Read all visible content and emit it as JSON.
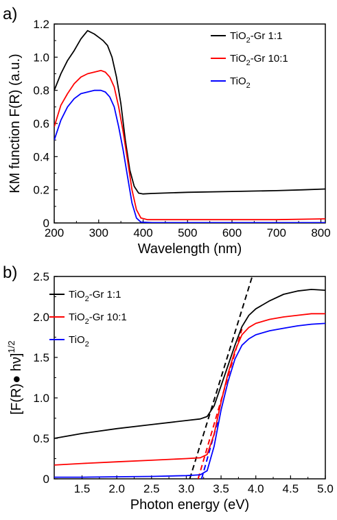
{
  "chart_data": [
    {
      "panel_label": "a)",
      "type": "line",
      "xlabel": "Wavelength (nm)",
      "ylabel": "KM function F(R) (a.u.)",
      "xlim": [
        200,
        810
      ],
      "ylim": [
        0,
        1.2
      ],
      "xticks": [
        "200",
        "300",
        "400",
        "500",
        "600",
        "700",
        "800"
      ],
      "yticks": [
        "0",
        "0.2",
        "0.4",
        "0.6",
        "0.8",
        "1.0",
        "1.2"
      ],
      "legend_position": "top-right",
      "series": [
        {
          "name": "TiO2-Gr 1:1",
          "name_main": "TiO",
          "name_sub": "2",
          "name_rest": "-Gr 1:1",
          "color": "#000000",
          "points": [
            [
              200,
              0.8
            ],
            [
              215,
              0.9
            ],
            [
              230,
              0.98
            ],
            [
              245,
              1.04
            ],
            [
              260,
              1.11
            ],
            [
              275,
              1.16
            ],
            [
              290,
              1.14
            ],
            [
              300,
              1.12
            ],
            [
              310,
              1.1
            ],
            [
              320,
              1.07
            ],
            [
              330,
              1.0
            ],
            [
              340,
              0.88
            ],
            [
              350,
              0.72
            ],
            [
              360,
              0.5
            ],
            [
              370,
              0.32
            ],
            [
              380,
              0.22
            ],
            [
              390,
              0.18
            ],
            [
              400,
              0.175
            ],
            [
              420,
              0.178
            ],
            [
              500,
              0.185
            ],
            [
              600,
              0.19
            ],
            [
              700,
              0.195
            ],
            [
              760,
              0.2
            ],
            [
              810,
              0.205
            ]
          ]
        },
        {
          "name": "TiO2-Gr 10:1",
          "name_main": "TiO",
          "name_sub": "2",
          "name_rest": "-Gr 10:1",
          "color": "#ff0000",
          "points": [
            [
              200,
              0.58
            ],
            [
              215,
              0.71
            ],
            [
              230,
              0.78
            ],
            [
              245,
              0.84
            ],
            [
              260,
              0.88
            ],
            [
              275,
              0.9
            ],
            [
              290,
              0.91
            ],
            [
              305,
              0.92
            ],
            [
              315,
              0.91
            ],
            [
              325,
              0.88
            ],
            [
              335,
              0.82
            ],
            [
              345,
              0.7
            ],
            [
              355,
              0.55
            ],
            [
              365,
              0.38
            ],
            [
              375,
              0.2
            ],
            [
              385,
              0.08
            ],
            [
              395,
              0.03
            ],
            [
              410,
              0.02
            ],
            [
              500,
              0.02
            ],
            [
              600,
              0.02
            ],
            [
              700,
              0.02
            ],
            [
              810,
              0.025
            ]
          ]
        },
        {
          "name": "TiO2",
          "name_main": "TiO",
          "name_sub": "2",
          "name_rest": "",
          "color": "#0000ff",
          "points": [
            [
              200,
              0.5
            ],
            [
              215,
              0.62
            ],
            [
              230,
              0.7
            ],
            [
              245,
              0.75
            ],
            [
              260,
              0.78
            ],
            [
              275,
              0.79
            ],
            [
              290,
              0.8
            ],
            [
              305,
              0.8
            ],
            [
              315,
              0.79
            ],
            [
              325,
              0.76
            ],
            [
              335,
              0.7
            ],
            [
              345,
              0.58
            ],
            [
              355,
              0.44
            ],
            [
              365,
              0.28
            ],
            [
              375,
              0.12
            ],
            [
              385,
              0.03
            ],
            [
              395,
              0.005
            ],
            [
              420,
              0.002
            ],
            [
              600,
              0.002
            ],
            [
              810,
              0.002
            ]
          ]
        }
      ]
    },
    {
      "panel_label": "b)",
      "type": "line",
      "xlabel": "Photon energy (eV)",
      "ylabel_main": "[F(R)● hν]",
      "ylabel_sup": "1/2",
      "xlim": [
        1.1,
        5.0
      ],
      "ylim": [
        0,
        2.5
      ],
      "xticks": [
        "1.5",
        "2.0",
        "2.5",
        "3.0",
        "3.5",
        "4.0",
        "4.5",
        "5.0"
      ],
      "yticks": [
        "0",
        "0.5",
        "1.0",
        "1.5",
        "2.0",
        "2.5"
      ],
      "legend_position": "top-left",
      "series": [
        {
          "name": "TiO2-Gr 1:1",
          "name_main": "TiO",
          "name_sub": "2",
          "name_rest": "-Gr 1:1",
          "color": "#000000",
          "points": [
            [
              1.1,
              0.5
            ],
            [
              1.5,
              0.56
            ],
            [
              2.0,
              0.62
            ],
            [
              2.5,
              0.67
            ],
            [
              3.0,
              0.72
            ],
            [
              3.2,
              0.74
            ],
            [
              3.3,
              0.77
            ],
            [
              3.4,
              0.9
            ],
            [
              3.5,
              1.15
            ],
            [
              3.6,
              1.4
            ],
            [
              3.7,
              1.65
            ],
            [
              3.8,
              1.88
            ],
            [
              3.9,
              2.02
            ],
            [
              4.0,
              2.1
            ],
            [
              4.2,
              2.2
            ],
            [
              4.4,
              2.28
            ],
            [
              4.6,
              2.32
            ],
            [
              4.8,
              2.34
            ],
            [
              5.0,
              2.33
            ]
          ]
        },
        {
          "name": "TiO2-Gr 10:1",
          "name_main": "TiO",
          "name_sub": "2",
          "name_rest": "-Gr 10:1",
          "color": "#ff0000",
          "points": [
            [
              1.1,
              0.17
            ],
            [
              1.5,
              0.19
            ],
            [
              2.0,
              0.21
            ],
            [
              2.5,
              0.23
            ],
            [
              3.0,
              0.25
            ],
            [
              3.2,
              0.26
            ],
            [
              3.3,
              0.3
            ],
            [
              3.4,
              0.55
            ],
            [
              3.5,
              0.95
            ],
            [
              3.6,
              1.3
            ],
            [
              3.7,
              1.58
            ],
            [
              3.8,
              1.78
            ],
            [
              3.9,
              1.87
            ],
            [
              4.0,
              1.92
            ],
            [
              4.2,
              1.97
            ],
            [
              4.4,
              2.0
            ],
            [
              4.6,
              2.02
            ],
            [
              4.8,
              2.04
            ],
            [
              5.0,
              2.04
            ]
          ]
        },
        {
          "name": "TiO2",
          "name_main": "TiO",
          "name_sub": "2",
          "name_rest": "",
          "color": "#0000ff",
          "points": [
            [
              1.1,
              0.02
            ],
            [
              1.5,
              0.02
            ],
            [
              2.0,
              0.025
            ],
            [
              2.5,
              0.03
            ],
            [
              3.0,
              0.04
            ],
            [
              3.2,
              0.05
            ],
            [
              3.3,
              0.1
            ],
            [
              3.4,
              0.4
            ],
            [
              3.5,
              0.85
            ],
            [
              3.6,
              1.2
            ],
            [
              3.7,
              1.48
            ],
            [
              3.8,
              1.65
            ],
            [
              3.9,
              1.73
            ],
            [
              4.0,
              1.78
            ],
            [
              4.2,
              1.83
            ],
            [
              4.4,
              1.86
            ],
            [
              4.6,
              1.89
            ],
            [
              4.8,
              1.91
            ],
            [
              5.0,
              1.92
            ]
          ]
        }
      ],
      "tangent_lines": [
        {
          "color": "#000000",
          "points": [
            [
              3.05,
              0.0
            ],
            [
              4.02,
              2.7
            ]
          ]
        },
        {
          "color": "#ff0000",
          "points": [
            [
              3.17,
              0.0
            ],
            [
              3.8,
              1.85
            ]
          ]
        },
        {
          "color": "#0000ff",
          "points": [
            [
              3.22,
              0.0
            ],
            [
              3.45,
              0.7
            ]
          ]
        }
      ]
    }
  ]
}
